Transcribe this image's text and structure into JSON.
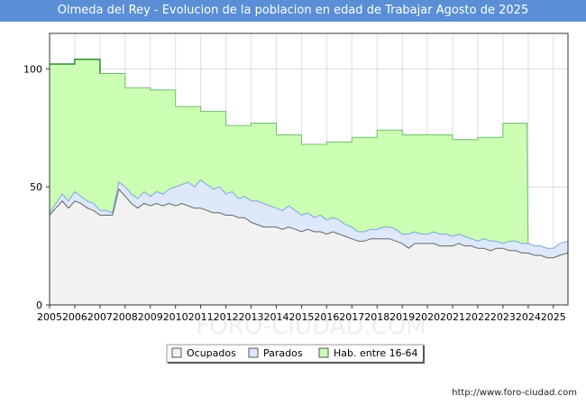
{
  "chart_data": {
    "type": "area",
    "title": "Olmeda del Rey - Evolucion de la poblacion en edad de Trabajar Agosto de 2025",
    "xlabel": "",
    "ylabel": "",
    "xlim": [
      2005,
      2025.58
    ],
    "ylim": [
      0,
      115
    ],
    "yticks": [
      0,
      50,
      100
    ],
    "xticks": [
      2005,
      2006,
      2007,
      2008,
      2009,
      2010,
      2011,
      2012,
      2013,
      2014,
      2015,
      2016,
      2017,
      2018,
      2019,
      2020,
      2021,
      2022,
      2023,
      2024,
      2025
    ],
    "grid": true,
    "legend_position": "bottom",
    "colors": {
      "hab_fill": "#ccffb3",
      "hab_line": "#6fbf6f",
      "hab_top_line": "#2e8b2e",
      "parados_fill": "#dde8fb",
      "parados_line": "#7aa7e0",
      "ocupados_fill": "#f2f2f2",
      "ocupados_line": "#666666"
    },
    "series": [
      {
        "name": "Hab. entre 16-64",
        "points": [
          [
            2005.0,
            102
          ],
          [
            2006.0,
            102
          ],
          [
            2006.0,
            104
          ],
          [
            2007.0,
            104
          ],
          [
            2007.0,
            98
          ],
          [
            2008.0,
            98
          ],
          [
            2008.0,
            92
          ],
          [
            2009.0,
            92
          ],
          [
            2009.0,
            91
          ],
          [
            2010.0,
            91
          ],
          [
            2010.0,
            84
          ],
          [
            2011.0,
            84
          ],
          [
            2011.0,
            82
          ],
          [
            2012.0,
            82
          ],
          [
            2012.0,
            76
          ],
          [
            2013.0,
            76
          ],
          [
            2013.0,
            77
          ],
          [
            2014.0,
            77
          ],
          [
            2014.0,
            72
          ],
          [
            2015.0,
            72
          ],
          [
            2015.0,
            68
          ],
          [
            2016.0,
            68
          ],
          [
            2016.0,
            69
          ],
          [
            2017.0,
            69
          ],
          [
            2017.0,
            71
          ],
          [
            2018.0,
            71
          ],
          [
            2018.0,
            74
          ],
          [
            2019.0,
            74
          ],
          [
            2019.0,
            72
          ],
          [
            2020.0,
            72
          ],
          [
            2020.0,
            72
          ],
          [
            2021.0,
            72
          ],
          [
            2021.0,
            70
          ],
          [
            2022.0,
            70
          ],
          [
            2022.0,
            71
          ],
          [
            2023.0,
            71
          ],
          [
            2023.0,
            77
          ],
          [
            2023.95,
            77
          ],
          [
            2024.0,
            22
          ],
          [
            2025.58,
            22
          ]
        ]
      },
      {
        "name": "Parados",
        "points": [
          [
            2005.0,
            39
          ],
          [
            2005.25,
            43
          ],
          [
            2005.5,
            47
          ],
          [
            2005.75,
            44
          ],
          [
            2006.0,
            48
          ],
          [
            2006.25,
            46
          ],
          [
            2006.5,
            44
          ],
          [
            2006.75,
            43
          ],
          [
            2007.0,
            40
          ],
          [
            2007.25,
            40
          ],
          [
            2007.5,
            39
          ],
          [
            2007.75,
            52
          ],
          [
            2008.0,
            50
          ],
          [
            2008.25,
            47
          ],
          [
            2008.5,
            45
          ],
          [
            2008.75,
            48
          ],
          [
            2009.0,
            46
          ],
          [
            2009.25,
            48
          ],
          [
            2009.5,
            47
          ],
          [
            2009.75,
            49
          ],
          [
            2010.0,
            50
          ],
          [
            2010.25,
            51
          ],
          [
            2010.5,
            52
          ],
          [
            2010.75,
            50
          ],
          [
            2011.0,
            53
          ],
          [
            2011.25,
            51
          ],
          [
            2011.5,
            49
          ],
          [
            2011.75,
            50
          ],
          [
            2012.0,
            47
          ],
          [
            2012.25,
            48
          ],
          [
            2012.5,
            45
          ],
          [
            2012.75,
            46
          ],
          [
            2013.0,
            44
          ],
          [
            2013.25,
            44
          ],
          [
            2013.5,
            43
          ],
          [
            2013.75,
            42
          ],
          [
            2014.0,
            41
          ],
          [
            2014.25,
            40
          ],
          [
            2014.5,
            42
          ],
          [
            2014.75,
            40
          ],
          [
            2015.0,
            38
          ],
          [
            2015.25,
            39
          ],
          [
            2015.5,
            37
          ],
          [
            2015.75,
            38
          ],
          [
            2016.0,
            36
          ],
          [
            2016.25,
            37
          ],
          [
            2016.5,
            36
          ],
          [
            2016.75,
            34
          ],
          [
            2017.0,
            33
          ],
          [
            2017.25,
            31
          ],
          [
            2017.5,
            31
          ],
          [
            2017.75,
            32
          ],
          [
            2018.0,
            32
          ],
          [
            2018.25,
            33
          ],
          [
            2018.5,
            33
          ],
          [
            2018.75,
            32
          ],
          [
            2019.0,
            30
          ],
          [
            2019.25,
            30
          ],
          [
            2019.5,
            31
          ],
          [
            2019.75,
            30
          ],
          [
            2020.0,
            30
          ],
          [
            2020.25,
            31
          ],
          [
            2020.5,
            30
          ],
          [
            2020.75,
            30
          ],
          [
            2021.0,
            29
          ],
          [
            2021.25,
            30
          ],
          [
            2021.5,
            29
          ],
          [
            2021.75,
            28
          ],
          [
            2022.0,
            27
          ],
          [
            2022.25,
            28
          ],
          [
            2022.5,
            27
          ],
          [
            2022.75,
            27
          ],
          [
            2023.0,
            26
          ],
          [
            2023.25,
            27
          ],
          [
            2023.5,
            27
          ],
          [
            2023.75,
            26
          ],
          [
            2024.0,
            26
          ],
          [
            2024.25,
            25
          ],
          [
            2024.5,
            25
          ],
          [
            2024.75,
            24
          ],
          [
            2025.0,
            24
          ],
          [
            2025.25,
            26
          ],
          [
            2025.58,
            27
          ]
        ]
      },
      {
        "name": "Ocupados",
        "points": [
          [
            2005.0,
            38
          ],
          [
            2005.25,
            41
          ],
          [
            2005.5,
            44
          ],
          [
            2005.75,
            41
          ],
          [
            2006.0,
            44
          ],
          [
            2006.25,
            43
          ],
          [
            2006.5,
            41
          ],
          [
            2006.75,
            40
          ],
          [
            2007.0,
            38
          ],
          [
            2007.25,
            38
          ],
          [
            2007.5,
            38
          ],
          [
            2007.75,
            49
          ],
          [
            2008.0,
            46
          ],
          [
            2008.25,
            43
          ],
          [
            2008.5,
            41
          ],
          [
            2008.75,
            43
          ],
          [
            2009.0,
            42
          ],
          [
            2009.25,
            43
          ],
          [
            2009.5,
            42
          ],
          [
            2009.75,
            43
          ],
          [
            2010.0,
            42
          ],
          [
            2010.25,
            43
          ],
          [
            2010.5,
            42
          ],
          [
            2010.75,
            41
          ],
          [
            2011.0,
            41
          ],
          [
            2011.25,
            40
          ],
          [
            2011.5,
            39
          ],
          [
            2011.75,
            39
          ],
          [
            2012.0,
            38
          ],
          [
            2012.25,
            38
          ],
          [
            2012.5,
            37
          ],
          [
            2012.75,
            37
          ],
          [
            2013.0,
            35
          ],
          [
            2013.25,
            34
          ],
          [
            2013.5,
            33
          ],
          [
            2013.75,
            33
          ],
          [
            2014.0,
            33
          ],
          [
            2014.25,
            32
          ],
          [
            2014.5,
            33
          ],
          [
            2014.75,
            32
          ],
          [
            2015.0,
            31
          ],
          [
            2015.25,
            32
          ],
          [
            2015.5,
            31
          ],
          [
            2015.75,
            31
          ],
          [
            2016.0,
            30
          ],
          [
            2016.25,
            31
          ],
          [
            2016.5,
            30
          ],
          [
            2016.75,
            29
          ],
          [
            2017.0,
            28
          ],
          [
            2017.25,
            27
          ],
          [
            2017.5,
            27
          ],
          [
            2017.75,
            28
          ],
          [
            2018.0,
            28
          ],
          [
            2018.25,
            28
          ],
          [
            2018.5,
            28
          ],
          [
            2018.75,
            27
          ],
          [
            2019.0,
            26
          ],
          [
            2019.25,
            24
          ],
          [
            2019.5,
            26
          ],
          [
            2019.75,
            26
          ],
          [
            2020.0,
            26
          ],
          [
            2020.25,
            26
          ],
          [
            2020.5,
            25
          ],
          [
            2020.75,
            25
          ],
          [
            2021.0,
            25
          ],
          [
            2021.25,
            26
          ],
          [
            2021.5,
            25
          ],
          [
            2021.75,
            25
          ],
          [
            2022.0,
            24
          ],
          [
            2022.25,
            24
          ],
          [
            2022.5,
            23
          ],
          [
            2022.75,
            24
          ],
          [
            2023.0,
            24
          ],
          [
            2023.25,
            23
          ],
          [
            2023.5,
            23
          ],
          [
            2023.75,
            22
          ],
          [
            2024.0,
            22
          ],
          [
            2024.25,
            21
          ],
          [
            2024.5,
            21
          ],
          [
            2024.75,
            20
          ],
          [
            2025.0,
            20
          ],
          [
            2025.25,
            21
          ],
          [
            2025.58,
            22
          ]
        ]
      }
    ],
    "legend": [
      "Ocupados",
      "Parados",
      "Hab. entre 16-64"
    ]
  },
  "footer_url": "http://www.foro-ciudad.com",
  "watermark": "FORO-CIUDAD.COM"
}
